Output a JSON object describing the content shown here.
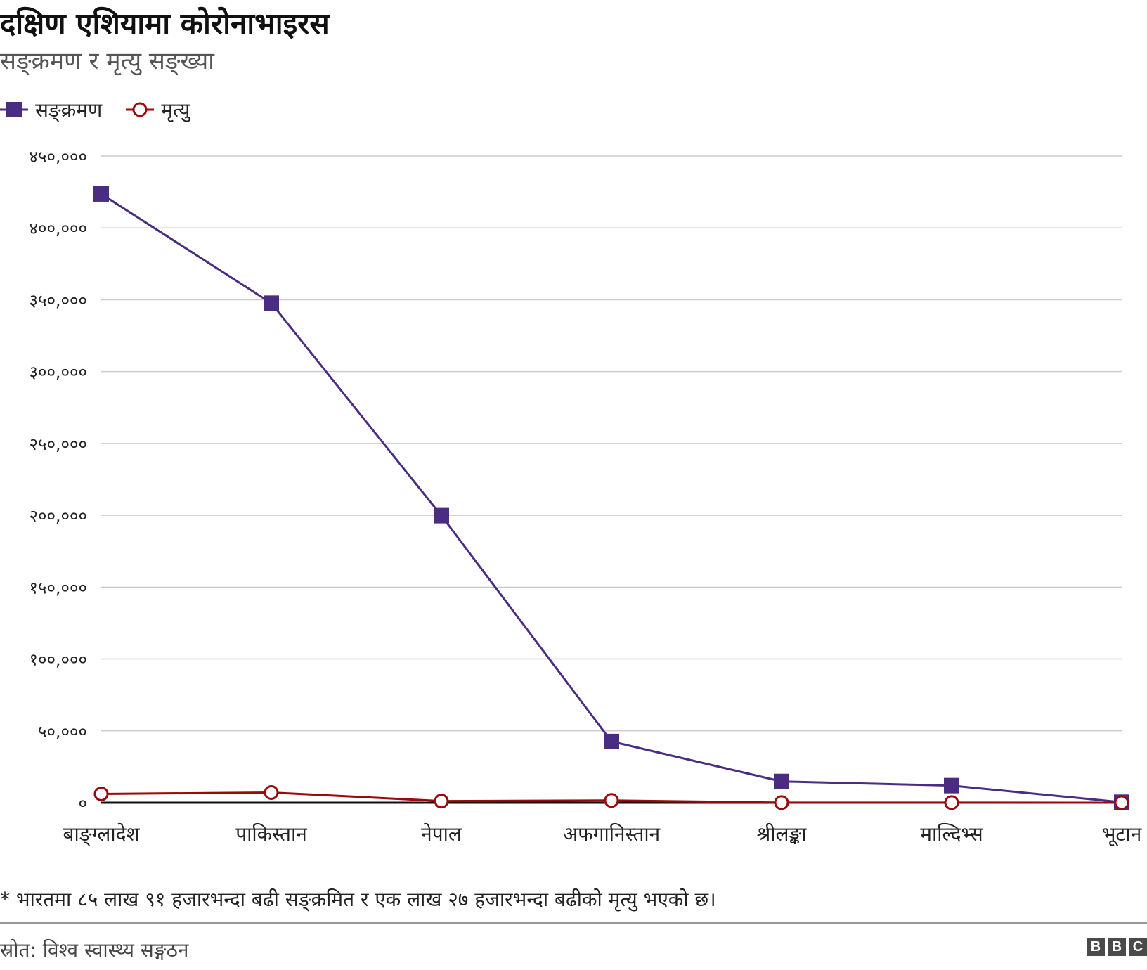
{
  "header": {
    "title": "दक्षिण एशियामा कोरोनाभाइरस",
    "subtitle": "सङ्क्रमण र मृत्यु सङ्ख्या"
  },
  "legend": {
    "infections_label": "सङ्क्रमण",
    "deaths_label": "मृत्यु"
  },
  "chart_data": {
    "type": "line",
    "categories": [
      "बाङ्ग्लादेश",
      "पाकिस्तान",
      "नेपाल",
      "अफगानिस्तान",
      "श्रीलङ्का",
      "माल्दिभ्स",
      "भूटान"
    ],
    "series": [
      {
        "name": "सङ्क्रमण",
        "color": "#4b2c83",
        "marker": "square-filled",
        "values": [
          423620,
          347604,
          199760,
          42609,
          14804,
          11905,
          342
        ]
      },
      {
        "name": "मृत्यु",
        "color": "#9b0a0a",
        "marker": "circle-open",
        "values": [
          6140,
          7090,
          1155,
          1581,
          47,
          39,
          0
        ]
      }
    ],
    "ylim": [
      0,
      450000
    ],
    "yticks": [
      0,
      50000,
      100000,
      150000,
      200000,
      250000,
      300000,
      350000,
      400000,
      450000
    ],
    "ytick_labels": [
      "०",
      "५०,०००",
      "१००,०००",
      "१५०,०००",
      "२००,०००",
      "२५०,०००",
      "३००,०००",
      "३५०,०००",
      "४००,०००",
      "४५०,०००"
    ],
    "grid": true,
    "legend_position": "top-left"
  },
  "footer": {
    "note": "* भारतमा ८५ लाख ९१ हजारभन्दा बढी सङ्क्रमित र एक लाख २७ हजारभन्दा बढीको मृत्यु भएको छ।",
    "source": "स्रोत: विश्व स्वास्थ्य सङ्गठन",
    "logo_letters": [
      "B",
      "B",
      "C"
    ]
  }
}
